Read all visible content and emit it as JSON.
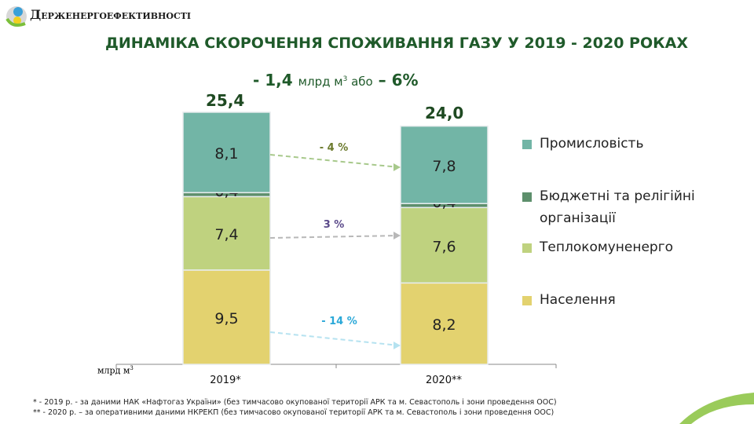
{
  "header": {
    "org_name": "Держенергоефективності",
    "title": "ДИНАМІКА СКОРОЧЕННЯ СПОЖИВАННЯ ГАЗУ У 2019  - 2020 РОКАХ"
  },
  "summary": {
    "change": "- 1,4",
    "unit": "млрд м",
    "unit_sup": "3",
    "or": "або",
    "percent": "– 6%"
  },
  "chart_data": {
    "type": "bar",
    "stacked": true,
    "categories": [
      "2019*",
      "2020**"
    ],
    "totals": [
      "25,4",
      "24,0"
    ],
    "ylabel": "млрд м³",
    "series": [
      {
        "name": "Населення",
        "values": [
          9.5,
          8.2
        ],
        "labels": [
          "9,5",
          "8,2"
        ],
        "color": "#e3d26f",
        "change": "- 14 %",
        "change_color": "#2aa8d8"
      },
      {
        "name": "Теплокомуненерго",
        "values": [
          7.4,
          7.6
        ],
        "labels": [
          "7,4",
          "7,6"
        ],
        "color": "#bfd27f",
        "change": "3 %",
        "change_color": "#5b4a8a"
      },
      {
        "name": "Бюджетні та релігійні організації",
        "values": [
          0.4,
          0.4
        ],
        "labels": [
          "0,4",
          "0,4"
        ],
        "color": "#5d8f6c",
        "change": null
      },
      {
        "name": "Промисловість",
        "values": [
          8.1,
          7.8
        ],
        "labels": [
          "8,1",
          "7,8"
        ],
        "color": "#72b5a6",
        "change": "- 4 %",
        "change_color": "#6b7a2c"
      }
    ]
  },
  "legend": [
    "Промисловість",
    "Бюджетні та релігійні організації",
    "Теплокомуненерго",
    "Населення"
  ],
  "footnotes": [
    "* - 2019 р. - за  даними НАК «Нафтогаз України» (без тимчасово окупованої території АРК та м. Севастополь і  зони проведення ООС)",
    "** - 2020 р. – за оперативними даними НКРЕКП (без тимчасово окупованої території АРК та м. Севастополь  і зони проведення ООС)"
  ]
}
